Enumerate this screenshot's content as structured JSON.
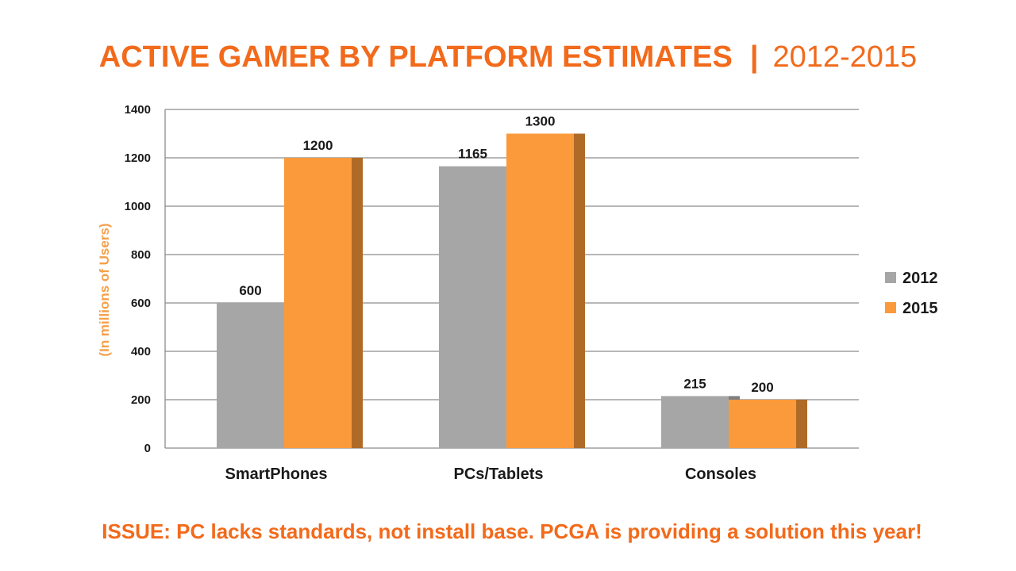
{
  "title": {
    "main": "ACTIVE GAMER BY PLATFORM ESTIMATES",
    "separator": "|",
    "years": "2012-2015"
  },
  "footer": "ISSUE: PC lacks standards, not install base.  PCGA is providing a solution this year!",
  "chart_data": {
    "type": "bar",
    "categories": [
      "SmartPhones",
      "PCs/Tablets",
      "Consoles"
    ],
    "series": [
      {
        "name": "2012",
        "values": [
          600,
          1165,
          215
        ],
        "color": "#a6a6a6",
        "side_color": "#7f7f7f"
      },
      {
        "name": "2015",
        "values": [
          1200,
          1300,
          200
        ],
        "color": "#fb9a3a",
        "side_color": "#b06a28"
      }
    ],
    "ylabel": "(In millions of Users)",
    "ylim": [
      0,
      1400
    ],
    "yticks": [
      0,
      200,
      400,
      600,
      800,
      1000,
      1200,
      1400
    ],
    "grid": true,
    "legend": "right"
  }
}
